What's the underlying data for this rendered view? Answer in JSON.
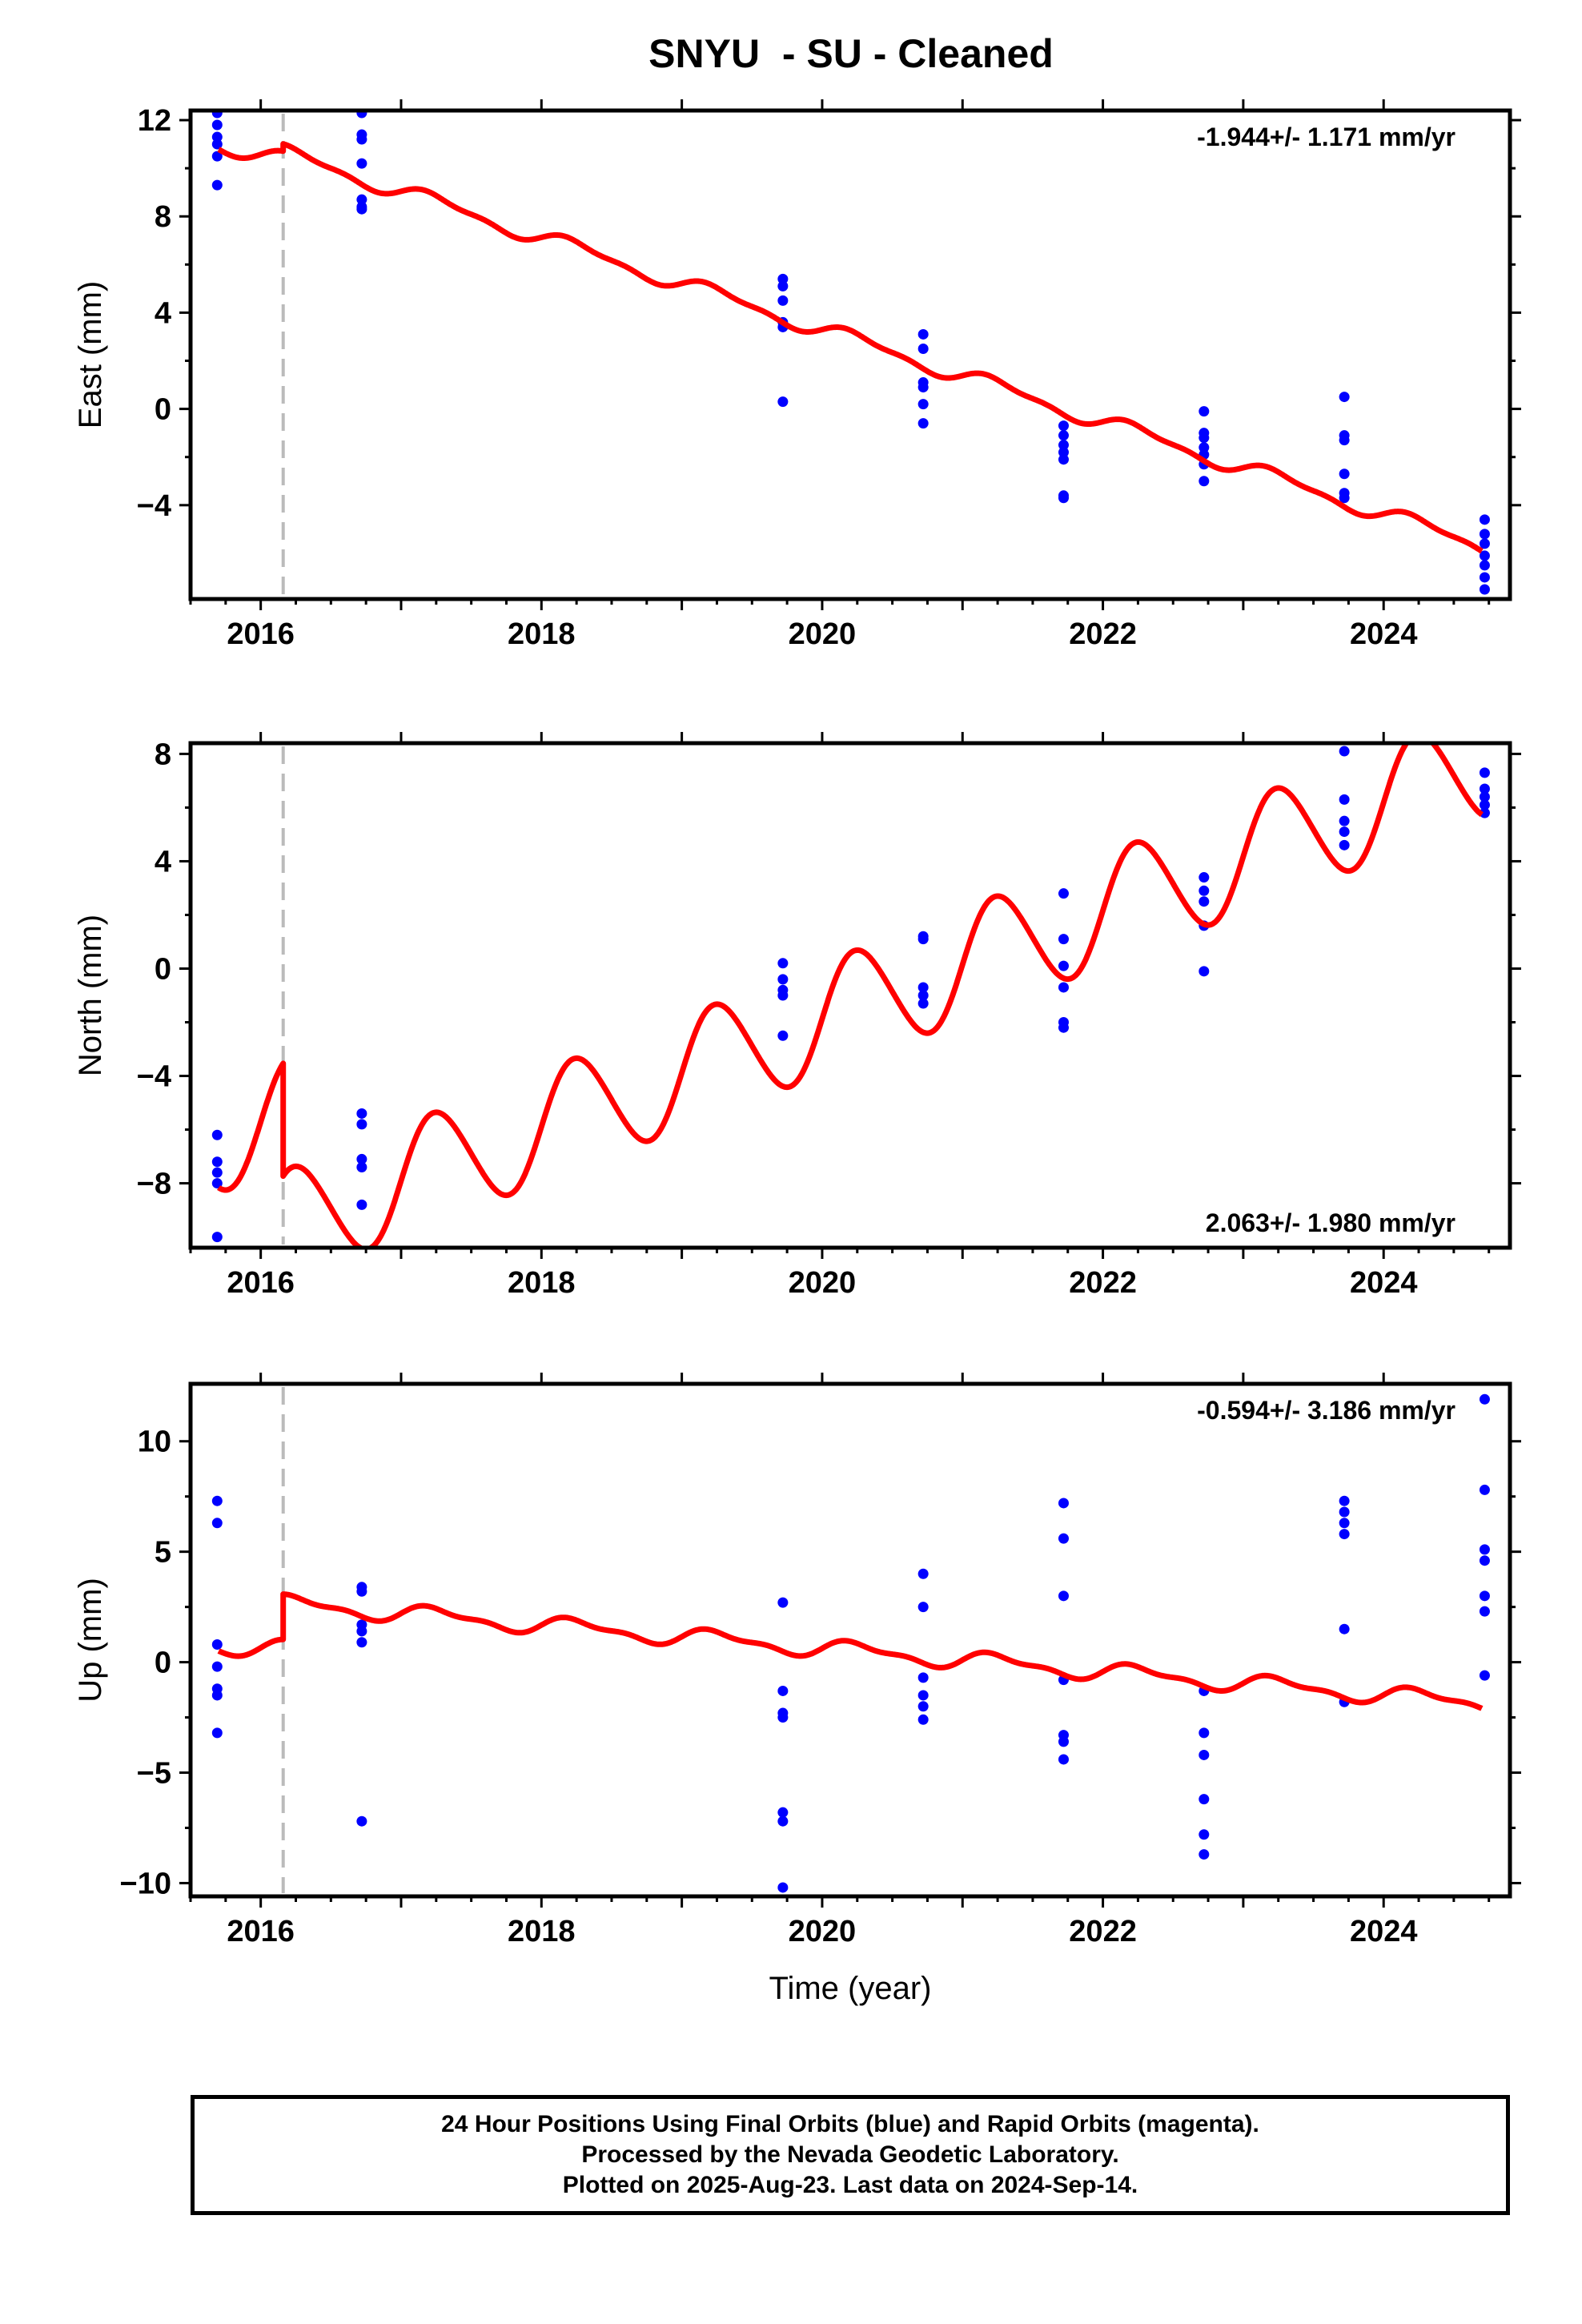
{
  "title": "SNYU  - SU - Cleaned",
  "colors": {
    "model": "#ff0000",
    "final_orbits": "#0000ff",
    "offset_line": "#bbbbbb",
    "axes": "#000000"
  },
  "footer": {
    "line1": "24 Hour Positions Using Final Orbits (blue) and Rapid Orbits (magenta).",
    "line2": "Processed by the Nevada Geodetic Laboratory.",
    "line3": "Plotted on 2025-Aug-23. Last data on 2024-Sep-14."
  },
  "chart_data": [
    {
      "type": "scatter",
      "panel": "east",
      "ylabel": "East (mm)",
      "xlabel": "",
      "xlim": [
        2015.5,
        2024.9
      ],
      "ylim": [
        -7.9,
        12.4
      ],
      "xticks": [
        2016,
        2018,
        2020,
        2022,
        2024
      ],
      "yticks": [
        -4,
        0,
        4,
        8,
        12
      ],
      "ytick_labels": [
        "−4",
        "0",
        "4",
        "8",
        "12"
      ],
      "rate_label": "-1.944+/- 1.171 mm/yr",
      "rate_position": "top-right",
      "offset_epoch": 2016.16,
      "model": {
        "trend": [
          [
            2015.7,
            11.0
          ],
          [
            2016.16,
            10.35
          ],
          [
            2016.16,
            10.65
          ],
          [
            2024.7,
            -5.7
          ]
        ],
        "annual_amp": 0.3,
        "semiannual_amp": 0.12
      },
      "points": [
        [
          2015.69,
          12.3
        ],
        [
          2015.69,
          11.8
        ],
        [
          2015.69,
          11.3
        ],
        [
          2015.69,
          11.0
        ],
        [
          2015.69,
          10.5
        ],
        [
          2015.69,
          9.3
        ],
        [
          2016.72,
          12.3
        ],
        [
          2016.72,
          11.4
        ],
        [
          2016.72,
          11.2
        ],
        [
          2016.72,
          10.2
        ],
        [
          2016.72,
          8.7
        ],
        [
          2016.72,
          8.4
        ],
        [
          2016.72,
          8.3
        ],
        [
          2019.72,
          5.4
        ],
        [
          2019.72,
          5.1
        ],
        [
          2019.72,
          4.5
        ],
        [
          2019.72,
          3.6
        ],
        [
          2019.72,
          3.4
        ],
        [
          2019.72,
          0.3
        ],
        [
          2020.72,
          3.1
        ],
        [
          2020.72,
          2.5
        ],
        [
          2020.72,
          1.1
        ],
        [
          2020.72,
          0.9
        ],
        [
          2020.72,
          0.2
        ],
        [
          2020.72,
          -0.6
        ],
        [
          2021.72,
          -0.7
        ],
        [
          2021.72,
          -1.1
        ],
        [
          2021.72,
          -1.5
        ],
        [
          2021.72,
          -1.8
        ],
        [
          2021.72,
          -2.1
        ],
        [
          2021.72,
          -3.6
        ],
        [
          2021.72,
          -3.7
        ],
        [
          2022.72,
          -0.1
        ],
        [
          2022.72,
          -1.0
        ],
        [
          2022.72,
          -1.2
        ],
        [
          2022.72,
          -1.6
        ],
        [
          2022.72,
          -1.9
        ],
        [
          2022.72,
          -2.3
        ],
        [
          2022.72,
          -3.0
        ],
        [
          2023.72,
          0.5
        ],
        [
          2023.72,
          -1.1
        ],
        [
          2023.72,
          -1.3
        ],
        [
          2023.72,
          -2.7
        ],
        [
          2023.72,
          -3.5
        ],
        [
          2023.72,
          -3.7
        ],
        [
          2024.72,
          -4.6
        ],
        [
          2024.72,
          -5.2
        ],
        [
          2024.72,
          -5.6
        ],
        [
          2024.72,
          -6.1
        ],
        [
          2024.72,
          -6.5
        ],
        [
          2024.72,
          -7.0
        ],
        [
          2024.72,
          -7.5
        ]
      ]
    },
    {
      "type": "scatter",
      "panel": "north",
      "ylabel": "North (mm)",
      "xlabel": "",
      "xlim": [
        2015.5,
        2024.9
      ],
      "ylim": [
        -10.4,
        8.4
      ],
      "xticks": [
        2016,
        2018,
        2020,
        2022,
        2024
      ],
      "yticks": [
        -8,
        -4,
        0,
        4,
        8
      ],
      "ytick_labels": [
        "−8",
        "−4",
        "0",
        "4",
        "8"
      ],
      "rate_label": "2.063+/- 1.980 mm/yr",
      "rate_position": "bottom-right",
      "offset_epoch": 2016.16,
      "model": {
        "trend": [
          [
            2015.7,
            -6.3
          ],
          [
            2016.16,
            -5.4
          ],
          [
            2016.16,
            -9.6
          ],
          [
            2024.7,
            7.6
          ]
        ],
        "annual_amp": 2.05,
        "semiannual_amp": 0.15
      },
      "points": [
        [
          2015.69,
          -6.2
        ],
        [
          2015.69,
          -7.2
        ],
        [
          2015.69,
          -7.6
        ],
        [
          2015.69,
          -8.0
        ],
        [
          2015.69,
          -10.0
        ],
        [
          2016.72,
          -5.4
        ],
        [
          2016.72,
          -5.8
        ],
        [
          2016.72,
          -7.1
        ],
        [
          2016.72,
          -7.4
        ],
        [
          2016.72,
          -8.8
        ],
        [
          2019.72,
          0.2
        ],
        [
          2019.72,
          -0.4
        ],
        [
          2019.72,
          -0.8
        ],
        [
          2019.72,
          -1.0
        ],
        [
          2019.72,
          -2.5
        ],
        [
          2020.72,
          1.2
        ],
        [
          2020.72,
          1.1
        ],
        [
          2020.72,
          -0.7
        ],
        [
          2020.72,
          -1.0
        ],
        [
          2020.72,
          -1.3
        ],
        [
          2021.72,
          2.8
        ],
        [
          2021.72,
          1.1
        ],
        [
          2021.72,
          0.1
        ],
        [
          2021.72,
          -0.7
        ],
        [
          2021.72,
          -2.0
        ],
        [
          2021.72,
          -2.2
        ],
        [
          2022.72,
          3.4
        ],
        [
          2022.72,
          2.9
        ],
        [
          2022.72,
          2.5
        ],
        [
          2022.72,
          1.6
        ],
        [
          2022.72,
          -0.1
        ],
        [
          2023.72,
          8.1
        ],
        [
          2023.72,
          6.3
        ],
        [
          2023.72,
          5.5
        ],
        [
          2023.72,
          5.1
        ],
        [
          2023.72,
          4.6
        ],
        [
          2024.72,
          7.3
        ],
        [
          2024.72,
          6.7
        ],
        [
          2024.72,
          6.4
        ],
        [
          2024.72,
          6.1
        ],
        [
          2024.72,
          5.8
        ]
      ]
    },
    {
      "type": "scatter",
      "panel": "up",
      "ylabel": "Up (mm)",
      "xlabel": "Time (year)",
      "xlim": [
        2015.5,
        2024.9
      ],
      "ylim": [
        -10.6,
        12.6
      ],
      "xticks": [
        2016,
        2018,
        2020,
        2022,
        2024
      ],
      "yticks": [
        -10,
        -5,
        0,
        5,
        10
      ],
      "ytick_labels": [
        "−10",
        "−5",
        "0",
        "5",
        "10"
      ],
      "rate_label": "-0.594+/- 3.186 mm/yr",
      "rate_position": "top-right",
      "offset_epoch": 2016.16,
      "model": {
        "trend": [
          [
            2015.7,
            0.75
          ],
          [
            2016.16,
            0.6
          ],
          [
            2016.16,
            2.65
          ],
          [
            2024.7,
            -1.85
          ]
        ],
        "annual_amp": 0.35,
        "semiannual_amp": 0.15
      },
      "points": [
        [
          2015.69,
          7.3
        ],
        [
          2015.69,
          6.3
        ],
        [
          2015.69,
          0.8
        ],
        [
          2015.69,
          -0.2
        ],
        [
          2015.69,
          -1.2
        ],
        [
          2015.69,
          -1.5
        ],
        [
          2015.69,
          -3.2
        ],
        [
          2016.72,
          3.4
        ],
        [
          2016.72,
          3.2
        ],
        [
          2016.72,
          1.7
        ],
        [
          2016.72,
          1.4
        ],
        [
          2016.72,
          0.9
        ],
        [
          2016.72,
          -7.2
        ],
        [
          2019.72,
          2.7
        ],
        [
          2019.72,
          -1.3
        ],
        [
          2019.72,
          -2.3
        ],
        [
          2019.72,
          -2.5
        ],
        [
          2019.72,
          -6.8
        ],
        [
          2019.72,
          -7.2
        ],
        [
          2019.72,
          -10.2
        ],
        [
          2020.72,
          4.0
        ],
        [
          2020.72,
          2.5
        ],
        [
          2020.72,
          -0.7
        ],
        [
          2020.72,
          -1.5
        ],
        [
          2020.72,
          -2.0
        ],
        [
          2020.72,
          -2.6
        ],
        [
          2021.72,
          7.2
        ],
        [
          2021.72,
          5.6
        ],
        [
          2021.72,
          3.0
        ],
        [
          2021.72,
          -0.8
        ],
        [
          2021.72,
          -3.3
        ],
        [
          2021.72,
          -3.6
        ],
        [
          2021.72,
          -4.4
        ],
        [
          2022.72,
          -1.3
        ],
        [
          2022.72,
          -3.2
        ],
        [
          2022.72,
          -4.2
        ],
        [
          2022.72,
          -6.2
        ],
        [
          2022.72,
          -7.8
        ],
        [
          2022.72,
          -8.7
        ],
        [
          2023.72,
          7.3
        ],
        [
          2023.72,
          6.8
        ],
        [
          2023.72,
          6.3
        ],
        [
          2023.72,
          5.8
        ],
        [
          2023.72,
          1.5
        ],
        [
          2023.72,
          -1.8
        ],
        [
          2024.72,
          11.9
        ],
        [
          2024.72,
          7.8
        ],
        [
          2024.72,
          5.1
        ],
        [
          2024.72,
          4.6
        ],
        [
          2024.72,
          3.0
        ],
        [
          2024.72,
          2.3
        ],
        [
          2024.72,
          -0.6
        ]
      ]
    }
  ]
}
